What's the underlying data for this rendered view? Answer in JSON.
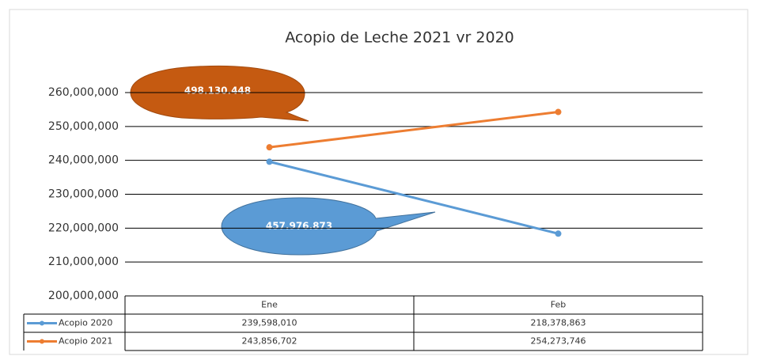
{
  "chart_data": {
    "type": "line",
    "title": "Acopio de Leche 2021 vr  2020",
    "categories": [
      "Ene",
      "Feb"
    ],
    "series": [
      {
        "name": "Acopio 2020",
        "color": "#5b9bd5",
        "values": [
          239598010,
          218378863
        ],
        "value_labels": [
          "239,598,010",
          "218,378,863"
        ]
      },
      {
        "name": "Acopio 2021",
        "color": "#ed7d31",
        "values": [
          243856702,
          254273746
        ],
        "value_labels": [
          "243,856,702",
          "254,273,746"
        ]
      }
    ],
    "ylim": [
      200000000,
      260000000
    ],
    "yticks": [
      {
        "value": 200000000,
        "label": "200,000,000"
      },
      {
        "value": 210000000,
        "label": "210,000,000"
      },
      {
        "value": 220000000,
        "label": "220,000,000"
      },
      {
        "value": 230000000,
        "label": "230,000,000"
      },
      {
        "value": 240000000,
        "label": "240,000,000"
      },
      {
        "value": 250000000,
        "label": "250,000,000"
      },
      {
        "value": 260000000,
        "label": "260,000,000"
      }
    ],
    "grid": true,
    "annotations": [
      "498.130.448",
      "457.976.873"
    ]
  }
}
